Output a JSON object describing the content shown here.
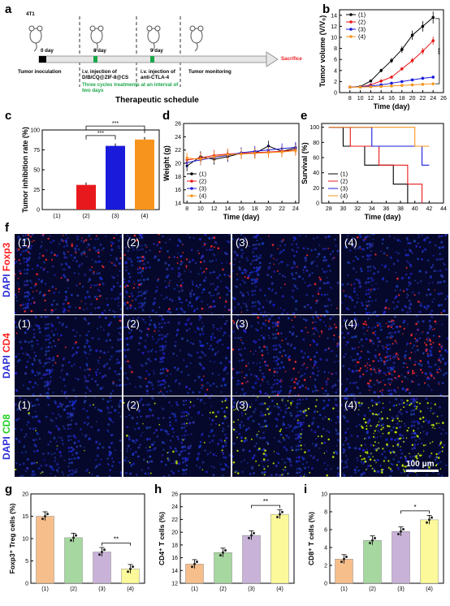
{
  "panels": {
    "a": "a",
    "b": "b",
    "c": "c",
    "d": "d",
    "e": "e",
    "f": "f",
    "g": "g",
    "h": "h",
    "i": "i"
  },
  "schematic": {
    "cell_line": "4T1",
    "day0": "0 day",
    "day8": "8 day",
    "day9": "9 day",
    "inoculation": "Tumor inoculation",
    "injection1": "i.v. injection of\nD/B/CQ@ZIF-8@CS",
    "cycles": "Three cycles treatments at an interval of\ntwo days",
    "injection2": "i.v. injection of\nanti-CTLA-4",
    "monitoring": "Tumor monitoring",
    "sacrifice": "Sacrifice",
    "title": "Therapeutic schedule"
  },
  "legend_labels": [
    "(1)",
    "(2)",
    "(3)",
    "(4)"
  ],
  "colors": {
    "g1": "#000000",
    "g2": "#e8191c",
    "g3": "#1a1adb",
    "g4": "#f7941d",
    "bar_g1": "#f6be8b",
    "bar_g2": "#a7d7a0",
    "bar_g3": "#c9b2d8",
    "bar_g4": "#fbf99a",
    "sig": "***",
    "sig2": "**",
    "sig3": "*"
  },
  "chart_data": [
    {
      "id": "b",
      "type": "line",
      "xlabel": "Time (day)",
      "ylabel": "Tumor volume (V/V₀)",
      "xlim": [
        6,
        26
      ],
      "ylim": [
        0,
        15
      ],
      "xticks": [
        8,
        10,
        12,
        14,
        16,
        18,
        20,
        22,
        24,
        26
      ],
      "yticks": [
        0,
        2,
        4,
        6,
        8,
        10,
        12,
        14
      ],
      "x": [
        8,
        10,
        12,
        14,
        16,
        18,
        20,
        22,
        24
      ],
      "series": [
        {
          "name": "(1)",
          "values": [
            1,
            1.1,
            2.1,
            4.0,
            5.8,
            7.8,
            10.4,
            12.0,
            13.6
          ]
        },
        {
          "name": "(2)",
          "values": [
            1,
            1.05,
            1.4,
            2.1,
            2.8,
            4.3,
            5.8,
            7.5,
            9.4
          ]
        },
        {
          "name": "(3)",
          "values": [
            1,
            1.05,
            1.2,
            1.4,
            1.7,
            2.0,
            2.3,
            2.6,
            2.8
          ]
        },
        {
          "name": "(4)",
          "values": [
            1,
            1.0,
            1.05,
            1.1,
            1.2,
            1.3,
            1.4,
            1.5,
            1.6
          ]
        }
      ],
      "annotation": "***"
    },
    {
      "id": "c",
      "type": "bar",
      "ylabel": "Tumor inhibition rate (%)",
      "categories": [
        "(1)",
        "(2)",
        "(3)",
        "(4)"
      ],
      "values": [
        0,
        31,
        80,
        88
      ],
      "ylim": [
        0,
        100
      ],
      "yticks": [
        0,
        25,
        50,
        75,
        100
      ],
      "annotations": [
        "***",
        "***"
      ]
    },
    {
      "id": "d",
      "type": "line",
      "xlabel": "Time (day)",
      "ylabel": "Weight (g)",
      "xlim": [
        7.5,
        24.5
      ],
      "ylim": [
        14,
        26
      ],
      "xticks": [
        8,
        10,
        12,
        14,
        16,
        18,
        20,
        22,
        24
      ],
      "yticks": [
        14,
        16,
        18,
        20,
        22,
        24,
        26
      ],
      "x": [
        8,
        10,
        12,
        14,
        16,
        18,
        20,
        22,
        24
      ],
      "series": [
        {
          "name": "(1)",
          "values": [
            19.6,
            21.0,
            20.6,
            21.0,
            21.5,
            21.5,
            22.6,
            21.8,
            22.3
          ]
        },
        {
          "name": "(2)",
          "values": [
            20.5,
            20.8,
            21.2,
            21.4,
            21.5,
            21.6,
            21.7,
            21.8,
            22.0
          ]
        },
        {
          "name": "(3)",
          "values": [
            20.1,
            20.5,
            20.9,
            21.2,
            21.6,
            21.8,
            22.0,
            22.2,
            22.4
          ]
        },
        {
          "name": "(4)",
          "values": [
            20.8,
            20.6,
            21.0,
            21.3,
            21.4,
            21.5,
            21.6,
            21.7,
            21.9
          ]
        }
      ]
    },
    {
      "id": "e",
      "type": "line",
      "xlabel": "Time (day)",
      "ylabel": "Survival (%)",
      "xlim": [
        27,
        44
      ],
      "ylim": [
        0,
        105
      ],
      "xticks": [
        28,
        30,
        32,
        34,
        36,
        38,
        40,
        42,
        44
      ],
      "yticks": [
        0,
        20,
        40,
        60,
        80,
        100
      ],
      "series": [
        {
          "name": "(1)",
          "x": [
            28,
            30,
            30,
            33,
            33,
            37,
            37,
            39,
            39
          ],
          "values": [
            100,
            100,
            75,
            75,
            50,
            50,
            25,
            25,
            0
          ]
        },
        {
          "name": "(2)",
          "x": [
            28,
            31,
            31,
            35,
            35,
            39,
            39,
            41,
            41
          ],
          "values": [
            100,
            100,
            75,
            75,
            50,
            50,
            25,
            25,
            0
          ]
        },
        {
          "name": "(3)",
          "x": [
            28,
            34,
            34,
            41,
            41,
            42
          ],
          "values": [
            100,
            100,
            75,
            75,
            50,
            50
          ]
        },
        {
          "name": "(4)",
          "x": [
            28,
            40,
            40,
            42
          ],
          "values": [
            100,
            100,
            75,
            75
          ]
        }
      ]
    },
    {
      "id": "g",
      "type": "bar",
      "ylabel": "Foxp3⁺ Treg cells (%)",
      "categories": [
        "(1)",
        "(2)",
        "(3)",
        "(4)"
      ],
      "values": [
        15.0,
        10.2,
        7.0,
        3.2
      ],
      "ylim": [
        0,
        20
      ],
      "yticks": [
        0,
        5,
        10,
        15,
        20
      ],
      "annotation": "**"
    },
    {
      "id": "h",
      "type": "bar",
      "ylabel": "CD4⁺ T cells (%)",
      "categories": [
        "(1)",
        "(2)",
        "(3)",
        "(4)"
      ],
      "values": [
        15.0,
        16.8,
        19.5,
        22.8
      ],
      "ylim": [
        12,
        26
      ],
      "yticks": [
        12,
        14,
        16,
        18,
        20,
        22,
        24,
        26
      ],
      "annotation": "**"
    },
    {
      "id": "i",
      "type": "bar",
      "ylabel": "CD8⁺ T cells (%)",
      "categories": [
        "(1)",
        "(2)",
        "(3)",
        "(4)"
      ],
      "values": [
        2.7,
        4.8,
        5.8,
        7.1
      ],
      "ylim": [
        0,
        10
      ],
      "yticks": [
        0,
        2,
        4,
        6,
        8,
        10
      ],
      "annotation": "*"
    }
  ],
  "microscopy": {
    "rows": [
      {
        "stain_blue": "DAPI ",
        "stain_color": "Foxp3",
        "stain_hex": "#ff2020",
        "labels": [
          "(1)",
          "(2)",
          "(3)",
          "(4)"
        ]
      },
      {
        "stain_blue": "DAPI ",
        "stain_color": "CD4",
        "stain_hex": "#ff2020",
        "labels": [
          "(1)",
          "(2)",
          "(3)",
          "(4)"
        ]
      },
      {
        "stain_blue": "DAPI ",
        "stain_color": "CD8",
        "stain_hex": "#20d020",
        "labels": [
          "(1)",
          "(2)",
          "(3)",
          "(4)"
        ]
      }
    ],
    "scale_bar": "100 μm"
  }
}
